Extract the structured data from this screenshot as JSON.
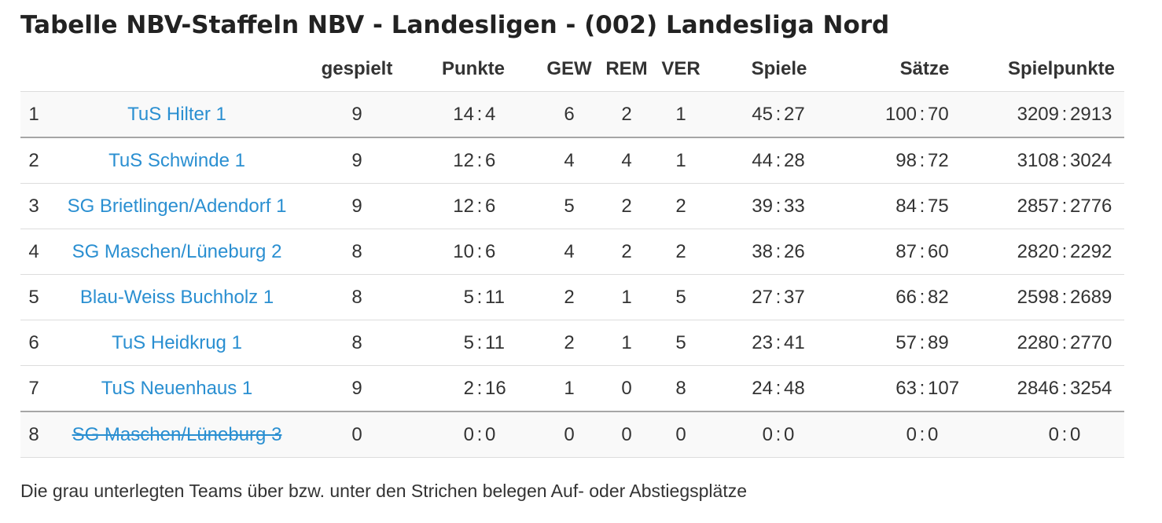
{
  "page": {
    "title": "Tabelle NBV-Staffeln NBV - Landesligen - (002) Landesliga Nord",
    "footnote": "Die grau unterlegten Teams über bzw. unter den Strichen belegen Auf- oder Abstiegsplätze"
  },
  "table": {
    "headers": {
      "rank": "",
      "team": "",
      "played": "gespielt",
      "points": "Punkte",
      "won": "GEW",
      "drawn": "REM",
      "lost": "VER",
      "games": "Spiele",
      "sets": "Sätze",
      "rally_points": "Spielpunkte"
    },
    "rows": [
      {
        "rank": "1",
        "team": "TuS Hilter 1",
        "played": "9",
        "points": [
          "14",
          "4"
        ],
        "won": "6",
        "drawn": "2",
        "lost": "1",
        "games": [
          "45",
          "27"
        ],
        "sets": [
          "100",
          "70"
        ],
        "rally_points": [
          "3209",
          "2913"
        ]
      },
      {
        "rank": "2",
        "team": "TuS Schwinde 1",
        "played": "9",
        "points": [
          "12",
          "6"
        ],
        "won": "4",
        "drawn": "4",
        "lost": "1",
        "games": [
          "44",
          "28"
        ],
        "sets": [
          "98",
          "72"
        ],
        "rally_points": [
          "3108",
          "3024"
        ]
      },
      {
        "rank": "3",
        "team": "SG Brietlingen/Adendorf 1",
        "played": "9",
        "points": [
          "12",
          "6"
        ],
        "won": "5",
        "drawn": "2",
        "lost": "2",
        "games": [
          "39",
          "33"
        ],
        "sets": [
          "84",
          "75"
        ],
        "rally_points": [
          "2857",
          "2776"
        ]
      },
      {
        "rank": "4",
        "team": "SG Maschen/Lüneburg 2",
        "played": "8",
        "points": [
          "10",
          "6"
        ],
        "won": "4",
        "drawn": "2",
        "lost": "2",
        "games": [
          "38",
          "26"
        ],
        "sets": [
          "87",
          "60"
        ],
        "rally_points": [
          "2820",
          "2292"
        ]
      },
      {
        "rank": "5",
        "team": "Blau-Weiss Buchholz 1",
        "played": "8",
        "points": [
          "5",
          "11"
        ],
        "won": "2",
        "drawn": "1",
        "lost": "5",
        "games": [
          "27",
          "37"
        ],
        "sets": [
          "66",
          "82"
        ],
        "rally_points": [
          "2598",
          "2689"
        ]
      },
      {
        "rank": "6",
        "team": "TuS Heidkrug 1",
        "played": "8",
        "points": [
          "5",
          "11"
        ],
        "won": "2",
        "drawn": "1",
        "lost": "5",
        "games": [
          "23",
          "41"
        ],
        "sets": [
          "57",
          "89"
        ],
        "rally_points": [
          "2280",
          "2770"
        ]
      },
      {
        "rank": "7",
        "team": "TuS Neuenhaus 1",
        "played": "9",
        "points": [
          "2",
          "16"
        ],
        "won": "1",
        "drawn": "0",
        "lost": "8",
        "games": [
          "24",
          "48"
        ],
        "sets": [
          "63",
          "107"
        ],
        "rally_points": [
          "2846",
          "3254"
        ]
      },
      {
        "rank": "8",
        "team": "SG Maschen/Lüneburg 3",
        "played": "0",
        "points": [
          "0",
          "0"
        ],
        "won": "0",
        "drawn": "0",
        "lost": "0",
        "games": [
          "0",
          "0"
        ],
        "sets": [
          "0",
          "0"
        ],
        "rally_points": [
          "0",
          "0"
        ]
      }
    ],
    "ratio_separator": ":"
  },
  "styles": {
    "link_color": "#2a8fd1",
    "shaded_row_bg": "#f9f9f9",
    "divider_color": "#a6a6a6"
  }
}
